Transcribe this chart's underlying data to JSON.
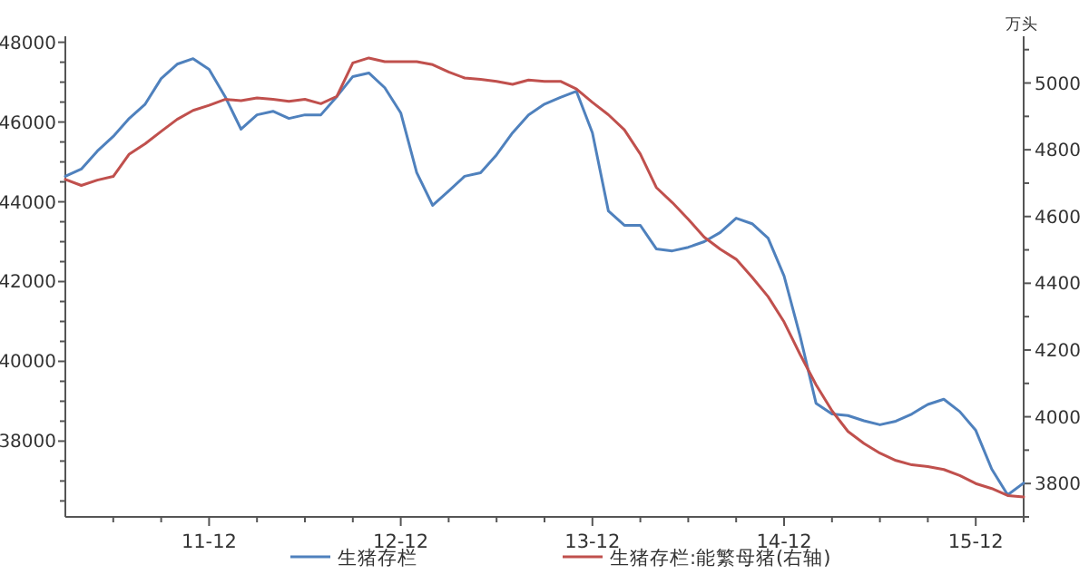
{
  "chart_data": {
    "type": "line",
    "y2label": "万头",
    "legend": "bottom",
    "grid": false,
    "marker": "none",
    "line_style": "solid",
    "x": [
      "2011-03",
      "2011-04",
      "2011-05",
      "2011-06",
      "2011-07",
      "2011-08",
      "2011-09",
      "2011-10",
      "2011-11",
      "2011-12",
      "2012-01",
      "2012-02",
      "2012-03",
      "2012-04",
      "2012-05",
      "2012-06",
      "2012-07",
      "2012-08",
      "2012-09",
      "2012-10",
      "2012-11",
      "2012-12",
      "2013-01",
      "2013-02",
      "2013-03",
      "2013-04",
      "2013-05",
      "2013-06",
      "2013-07",
      "2013-08",
      "2013-09",
      "2013-10",
      "2013-11",
      "2013-12",
      "2014-01",
      "2014-02",
      "2014-03",
      "2014-04",
      "2014-05",
      "2014-06",
      "2014-07",
      "2014-08",
      "2014-09",
      "2014-10",
      "2014-11",
      "2014-12",
      "2015-01",
      "2015-02",
      "2015-03",
      "2015-04",
      "2015-05",
      "2015-06",
      "2015-07",
      "2015-08",
      "2015-09",
      "2015-10",
      "2015-11",
      "2015-12",
      "2016-01",
      "2016-02",
      "2016-03"
    ],
    "series": [
      {
        "name": "生猪存栏",
        "color": "#4f81bd",
        "values": [
          44640,
          44820,
          45270,
          45640,
          46090,
          46450,
          47090,
          47450,
          47590,
          47320,
          46640,
          45820,
          46180,
          46270,
          46090,
          46180,
          46180,
          46640,
          47140,
          47230,
          46860,
          46230,
          44730,
          43910,
          44270,
          44640,
          44730,
          45180,
          45730,
          46180,
          46450,
          46620,
          46770,
          45730,
          43770,
          43410,
          43410,
          42820,
          42770,
          42860,
          43000,
          43230,
          43590,
          43450,
          43090,
          42140,
          40640,
          38950,
          38680,
          38640,
          38510,
          38410,
          38500,
          38680,
          38920,
          39050,
          38740,
          38270,
          37300,
          36650,
          36950
        ]
      },
      {
        "name": "生猪存栏:能繁母猪(右轴)",
        "color": "#c0504d",
        "axis": "y2",
        "values": [
          4711,
          4693,
          4709,
          4720,
          4787,
          4818,
          4855,
          4891,
          4918,
          4933,
          4951,
          4947,
          4955,
          4951,
          4945,
          4951,
          4938,
          4960,
          5060,
          5075,
          5064,
          5064,
          5064,
          5055,
          5033,
          5015,
          5011,
          5005,
          4996,
          5009,
          5005,
          5005,
          4982,
          4942,
          4905,
          4860,
          4787,
          4687,
          4642,
          4592,
          4538,
          4502,
          4472,
          4418,
          4360,
          4284,
          4187,
          4096,
          4018,
          3956,
          3920,
          3891,
          3869,
          3856,
          3851,
          3842,
          3824,
          3800,
          3785,
          3764,
          3760
        ]
      }
    ],
    "xlim": [
      "2011-03",
      "2016-03"
    ],
    "xticks": [
      {
        "value": "2011-06",
        "label": null
      },
      {
        "value": "2011-09",
        "label": null
      },
      {
        "value": "2011-12",
        "label": "11-12"
      },
      {
        "value": "2012-03",
        "label": null
      },
      {
        "value": "2012-06",
        "label": null
      },
      {
        "value": "2012-09",
        "label": null
      },
      {
        "value": "2012-12",
        "label": "12-12"
      },
      {
        "value": "2013-03",
        "label": null
      },
      {
        "value": "2013-06",
        "label": null
      },
      {
        "value": "2013-09",
        "label": null
      },
      {
        "value": "2013-12",
        "label": "13-12"
      },
      {
        "value": "2014-03",
        "label": null
      },
      {
        "value": "2014-06",
        "label": null
      },
      {
        "value": "2014-09",
        "label": null
      },
      {
        "value": "2014-12",
        "label": "14-12"
      },
      {
        "value": "2015-03",
        "label": null
      },
      {
        "value": "2015-06",
        "label": null
      },
      {
        "value": "2015-09",
        "label": null
      },
      {
        "value": "2015-12",
        "label": "15-12"
      },
      {
        "value": "2016-03",
        "label": null
      }
    ],
    "ylim": [
      36100,
      48150
    ],
    "yticks": [
      {
        "value": 36500,
        "label": null
      },
      {
        "value": 37000,
        "label": null
      },
      {
        "value": 37500,
        "label": null
      },
      38000,
      {
        "value": 38500,
        "label": null
      },
      {
        "value": 39000,
        "label": null
      },
      {
        "value": 39500,
        "label": null
      },
      40000,
      {
        "value": 40500,
        "label": null
      },
      {
        "value": 41000,
        "label": null
      },
      {
        "value": 41500,
        "label": null
      },
      42000,
      {
        "value": 42500,
        "label": null
      },
      {
        "value": 43000,
        "label": null
      },
      {
        "value": 43500,
        "label": null
      },
      44000,
      {
        "value": 44500,
        "label": null
      },
      {
        "value": 45000,
        "label": null
      },
      {
        "value": 45500,
        "label": null
      },
      46000,
      {
        "value": 46500,
        "label": null
      },
      {
        "value": 47000,
        "label": null
      },
      {
        "value": 47500,
        "label": null
      },
      48000
    ],
    "y2lim": [
      3700,
      5140
    ],
    "y2ticks": [
      {
        "value": 3700,
        "label": null
      },
      3800,
      {
        "value": 3900,
        "label": null
      },
      4000,
      {
        "value": 4100,
        "label": null
      },
      4200,
      {
        "value": 4300,
        "label": null
      },
      4400,
      {
        "value": 4500,
        "label": null
      },
      4600,
      {
        "value": 4700,
        "label": null
      },
      4800,
      {
        "value": 4900,
        "label": null
      },
      5000,
      {
        "value": 5100,
        "label": null
      }
    ]
  }
}
